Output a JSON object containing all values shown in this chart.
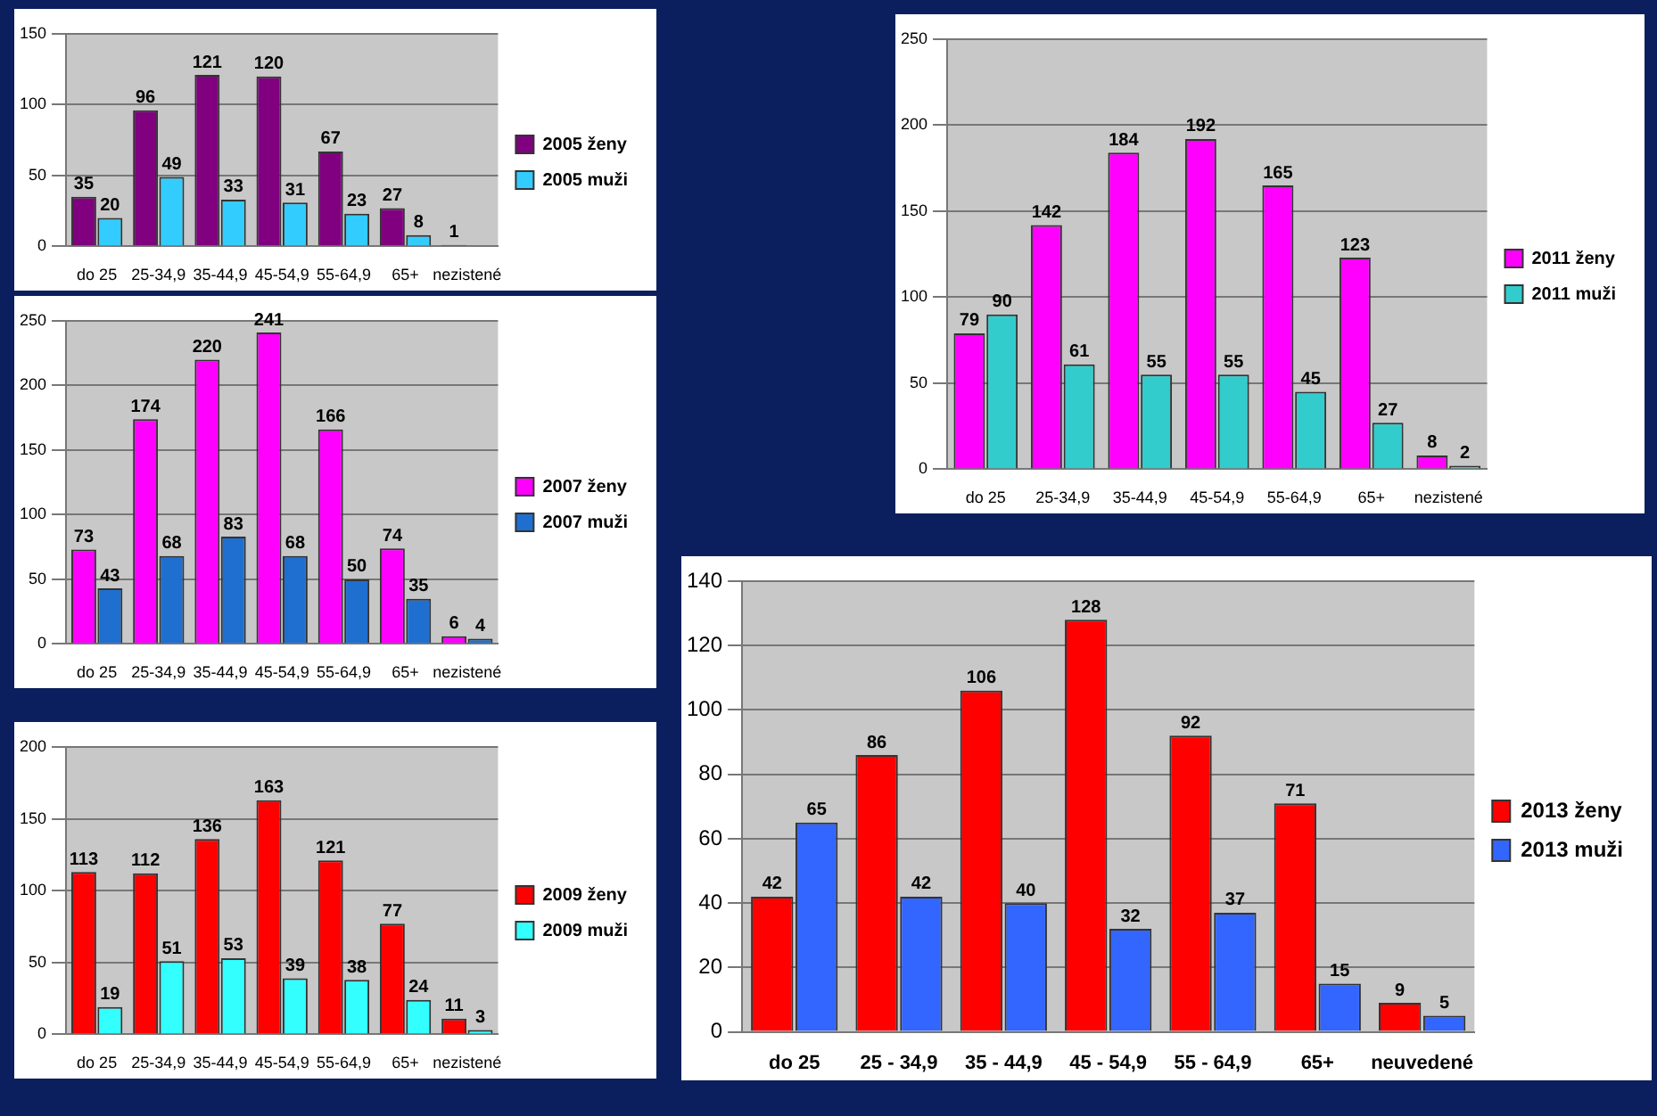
{
  "chart_data": [
    {
      "type": "bar",
      "categories": [
        "do 25",
        "25-34,9",
        "35-44,9",
        "45-54,9",
        "55-64,9",
        "65+",
        "nezistené"
      ],
      "series": [
        {
          "name": "2005 ženy",
          "color": "#800080",
          "values": [
            35,
            96,
            121,
            120,
            67,
            27,
            1
          ]
        },
        {
          "name": "2005 muži",
          "color": "#33ccff",
          "values": [
            20,
            49,
            33,
            31,
            23,
            8,
            null
          ]
        }
      ],
      "ylim": [
        0,
        150
      ],
      "yticks": [
        0,
        50,
        100,
        150
      ],
      "grid": "y",
      "legend": "right",
      "data_labels": true
    },
    {
      "type": "bar",
      "categories": [
        "do 25",
        "25-34,9",
        "35-44,9",
        "45-54,9",
        "55-64,9",
        "65+",
        "nezistené"
      ],
      "series": [
        {
          "name": "2007 ženy",
          "color": "#ff00ff",
          "values": [
            73,
            174,
            220,
            241,
            166,
            74,
            6
          ]
        },
        {
          "name": "2007 muži",
          "color": "#1f6fd0",
          "values": [
            43,
            68,
            83,
            68,
            50,
            35,
            4
          ]
        }
      ],
      "ylim": [
        0,
        250
      ],
      "yticks": [
        0,
        50,
        100,
        150,
        200,
        250
      ],
      "grid": "y",
      "legend": "right",
      "data_labels": true
    },
    {
      "type": "bar",
      "categories": [
        "do 25",
        "25-34,9",
        "35-44,9",
        "45-54,9",
        "55-64,9",
        "65+",
        "nezistené"
      ],
      "series": [
        {
          "name": "2009 ženy",
          "color": "#ff0000",
          "values": [
            113,
            112,
            136,
            163,
            121,
            77,
            11
          ]
        },
        {
          "name": "2009 muži",
          "color": "#33ffff",
          "values": [
            19,
            51,
            53,
            39,
            38,
            24,
            3
          ]
        }
      ],
      "ylim": [
        0,
        200
      ],
      "yticks": [
        0,
        50,
        100,
        150,
        200
      ],
      "grid": "y",
      "legend": "right",
      "data_labels": true
    },
    {
      "type": "bar",
      "categories": [
        "do 25",
        "25-34,9",
        "35-44,9",
        "45-54,9",
        "55-64,9",
        "65+",
        "nezistené"
      ],
      "series": [
        {
          "name": "2011 ženy",
          "color": "#ff00ff",
          "values": [
            79,
            142,
            184,
            192,
            165,
            123,
            8
          ]
        },
        {
          "name": "2011 muži",
          "color": "#33cccc",
          "values": [
            90,
            61,
            55,
            55,
            45,
            27,
            2
          ]
        }
      ],
      "ylim": [
        0,
        250
      ],
      "yticks": [
        0,
        50,
        100,
        150,
        200,
        250
      ],
      "grid": "y",
      "legend": "right",
      "data_labels": true
    },
    {
      "type": "bar",
      "categories": [
        "do 25",
        "25 - 34,9",
        "35 - 44,9",
        "45 - 54,9",
        "55 - 64,9",
        "65+",
        "neuvedené"
      ],
      "series": [
        {
          "name": "2013 ženy",
          "color": "#ff0000",
          "values": [
            42,
            86,
            106,
            128,
            92,
            71,
            9
          ]
        },
        {
          "name": "2013 muži",
          "color": "#3366ff",
          "values": [
            65,
            42,
            40,
            32,
            37,
            15,
            5
          ]
        }
      ],
      "ylim": [
        0,
        140
      ],
      "yticks": [
        0,
        20,
        40,
        60,
        80,
        100,
        120,
        140
      ],
      "grid": "y",
      "legend": "right",
      "data_labels": true
    }
  ]
}
